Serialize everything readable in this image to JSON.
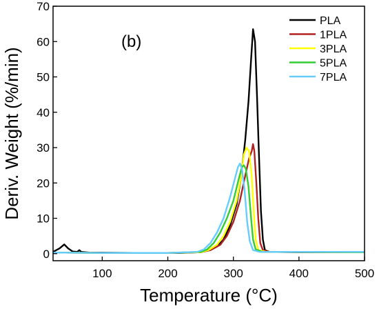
{
  "chart_data": {
    "type": "line",
    "annotation": "(b)",
    "xlabel": "Temperature (°C)",
    "ylabel": "Deriv. Weight (%/min)",
    "xlim": [
      25,
      500
    ],
    "ylim": [
      -2,
      70
    ],
    "xticks": [
      100,
      200,
      300,
      400,
      500
    ],
    "yticks": [
      0,
      10,
      20,
      30,
      40,
      50,
      60,
      70
    ],
    "grid": false,
    "legend_position": "top-right",
    "series": [
      {
        "name": "PLA",
        "color": "#000000",
        "points": [
          [
            25,
            0.5
          ],
          [
            35,
            1.5
          ],
          [
            42,
            2.6
          ],
          [
            48,
            1.5
          ],
          [
            55,
            0.6
          ],
          [
            62,
            0.5
          ],
          [
            65,
            1.0
          ],
          [
            68,
            0.5
          ],
          [
            80,
            0.3
          ],
          [
            150,
            0.2
          ],
          [
            220,
            0.2
          ],
          [
            250,
            0.4
          ],
          [
            265,
            1.0
          ],
          [
            275,
            2.0
          ],
          [
            285,
            4.0
          ],
          [
            295,
            8.0
          ],
          [
            305,
            14.0
          ],
          [
            312,
            22.0
          ],
          [
            318,
            32.0
          ],
          [
            323,
            43.0
          ],
          [
            327,
            55.0
          ],
          [
            330,
            63.5
          ],
          [
            333,
            60.0
          ],
          [
            336,
            45.0
          ],
          [
            339,
            28.0
          ],
          [
            342,
            12.0
          ],
          [
            345,
            4.0
          ],
          [
            348,
            1.0
          ],
          [
            355,
            0.5
          ],
          [
            400,
            0.4
          ],
          [
            500,
            0.4
          ]
        ]
      },
      {
        "name": "1PLA",
        "color": "#b22222",
        "points": [
          [
            25,
            0.3
          ],
          [
            100,
            0.2
          ],
          [
            200,
            0.2
          ],
          [
            250,
            0.4
          ],
          [
            265,
            1.0
          ],
          [
            280,
            2.5
          ],
          [
            290,
            5.0
          ],
          [
            300,
            9.0
          ],
          [
            310,
            15.0
          ],
          [
            318,
            22.0
          ],
          [
            324,
            27.0
          ],
          [
            328,
            29.0
          ],
          [
            330,
            31.0
          ],
          [
            332,
            29.0
          ],
          [
            335,
            20.0
          ],
          [
            338,
            10.0
          ],
          [
            341,
            3.0
          ],
          [
            345,
            1.0
          ],
          [
            355,
            0.5
          ],
          [
            500,
            0.4
          ]
        ]
      },
      {
        "name": "3PLA",
        "color": "#ffff00",
        "points": [
          [
            25,
            0.3
          ],
          [
            100,
            0.2
          ],
          [
            200,
            0.2
          ],
          [
            250,
            0.4
          ],
          [
            262,
            1.0
          ],
          [
            275,
            2.5
          ],
          [
            285,
            5.0
          ],
          [
            295,
            9.0
          ],
          [
            305,
            15.0
          ],
          [
            312,
            22.0
          ],
          [
            316,
            28.0
          ],
          [
            320,
            30.0
          ],
          [
            324,
            29.0
          ],
          [
            328,
            22.0
          ],
          [
            331,
            12.0
          ],
          [
            334,
            4.0
          ],
          [
            338,
            1.0
          ],
          [
            350,
            0.5
          ],
          [
            500,
            0.4
          ]
        ]
      },
      {
        "name": "5PLA",
        "color": "#33cc33",
        "points": [
          [
            25,
            0.3
          ],
          [
            100,
            0.2
          ],
          [
            200,
            0.2
          ],
          [
            250,
            0.5
          ],
          [
            260,
            1.2
          ],
          [
            270,
            3.0
          ],
          [
            280,
            6.0
          ],
          [
            290,
            10.0
          ],
          [
            300,
            15.0
          ],
          [
            308,
            21.0
          ],
          [
            313,
            24.5
          ],
          [
            316,
            25.0
          ],
          [
            319,
            24.0
          ],
          [
            323,
            19.0
          ],
          [
            327,
            10.0
          ],
          [
            330,
            4.0
          ],
          [
            334,
            1.2
          ],
          [
            345,
            0.5
          ],
          [
            500,
            0.4
          ]
        ]
      },
      {
        "name": "7PLA",
        "color": "#66ccff",
        "points": [
          [
            25,
            0.3
          ],
          [
            100,
            0.2
          ],
          [
            200,
            0.2
          ],
          [
            245,
            0.5
          ],
          [
            255,
            1.2
          ],
          [
            265,
            3.0
          ],
          [
            275,
            6.0
          ],
          [
            285,
            10.0
          ],
          [
            295,
            16.0
          ],
          [
            302,
            21.0
          ],
          [
            307,
            24.5
          ],
          [
            310,
            25.5
          ],
          [
            313,
            24.0
          ],
          [
            317,
            18.0
          ],
          [
            321,
            9.0
          ],
          [
            325,
            3.5
          ],
          [
            330,
            1.0
          ],
          [
            340,
            0.5
          ],
          [
            500,
            0.5
          ]
        ]
      }
    ]
  }
}
